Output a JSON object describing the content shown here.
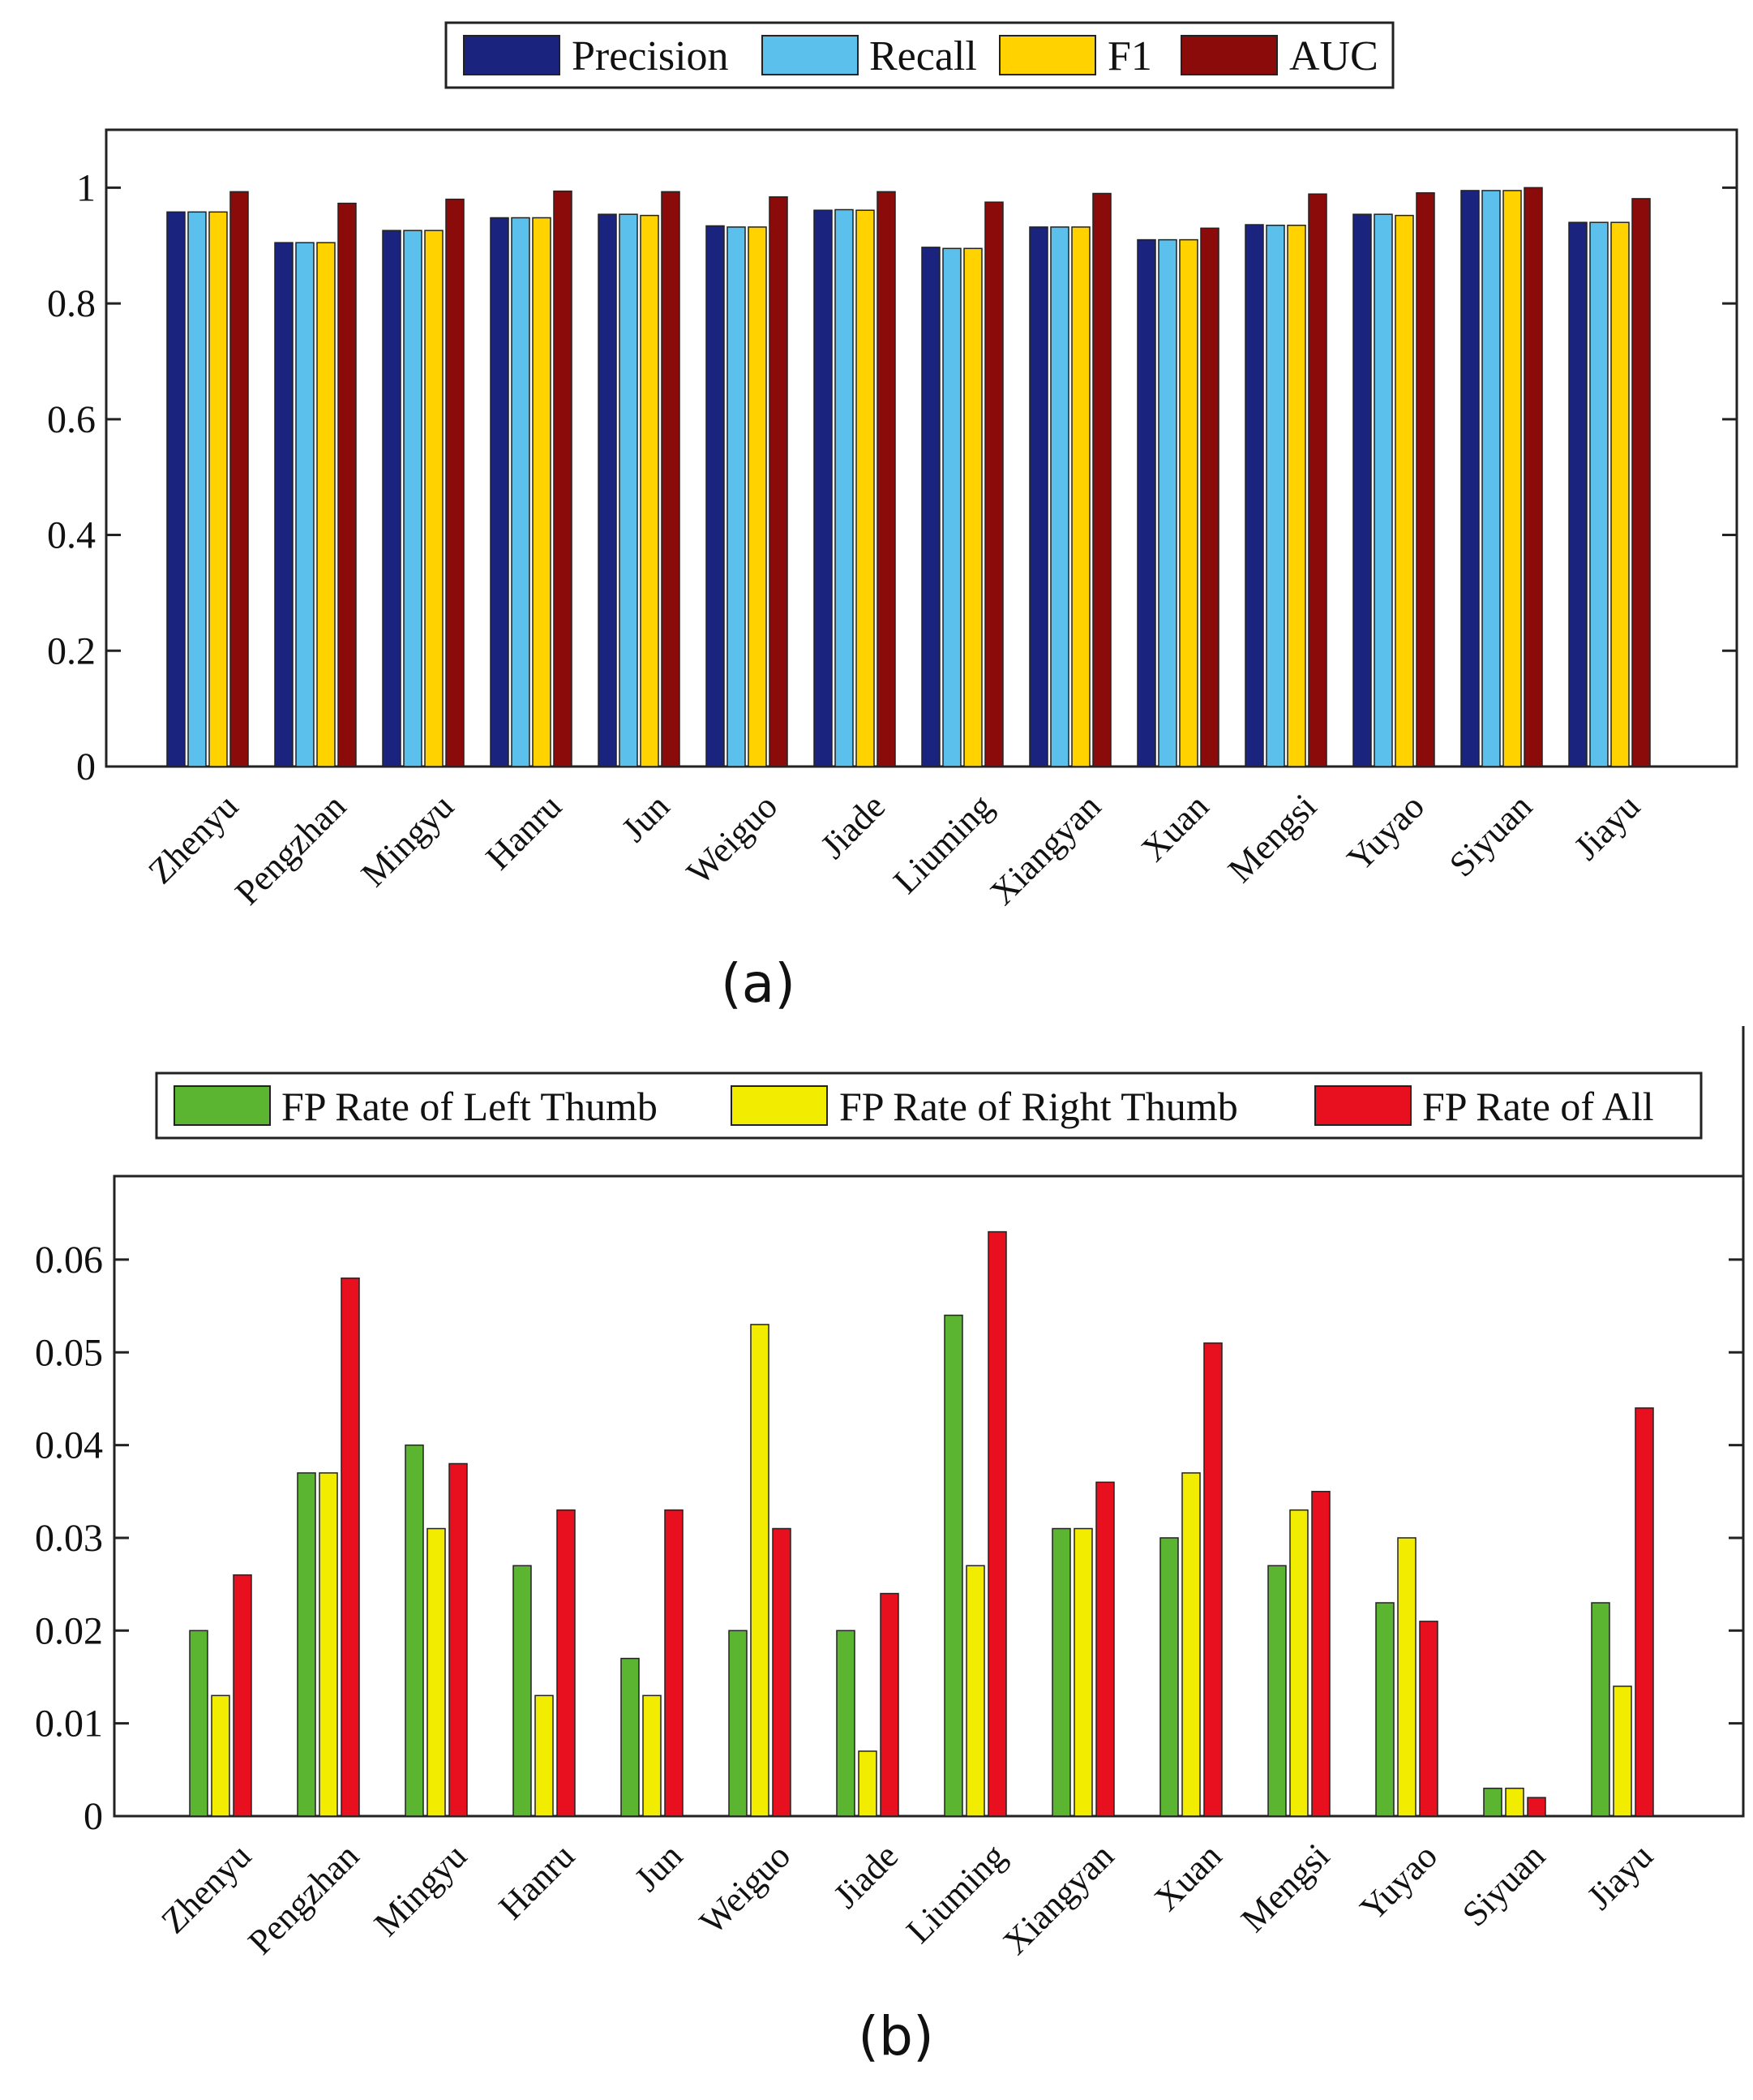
{
  "chart_data": [
    {
      "type": "bar",
      "panel_label": "(a)",
      "title": "",
      "xlabel": "",
      "ylabel": "",
      "ylim": [
        0,
        1.1
      ],
      "yticks": [
        0,
        0.2,
        0.4,
        0.6,
        0.8,
        1
      ],
      "ytick_labels": [
        "0",
        "0.2",
        "0.4",
        "0.6",
        "0.8",
        "1"
      ],
      "categories": [
        "Zhenyu",
        "Pengzhan",
        "Mingyu",
        "Hanru",
        "Jun",
        "Weiguo",
        "Jiade",
        "Liuming",
        "Xiangyan",
        "Xuan",
        "Mengsi",
        "Yuyao",
        "Siyuan",
        "Jiayu"
      ],
      "legend_position": "top-center",
      "series": [
        {
          "name": "Precision",
          "color": "#1a237e",
          "values": [
            0.958,
            0.905,
            0.926,
            0.948,
            0.954,
            0.934,
            0.961,
            0.897,
            0.932,
            0.91,
            0.936,
            0.954,
            0.995,
            0.94
          ]
        },
        {
          "name": "Recall",
          "color": "#5bc0eb",
          "values": [
            0.958,
            0.905,
            0.926,
            0.948,
            0.954,
            0.932,
            0.962,
            0.895,
            0.932,
            0.91,
            0.935,
            0.954,
            0.995,
            0.94
          ]
        },
        {
          "name": "F1",
          "color": "#ffd200",
          "values": [
            0.958,
            0.905,
            0.926,
            0.948,
            0.952,
            0.932,
            0.961,
            0.895,
            0.932,
            0.91,
            0.935,
            0.952,
            0.995,
            0.94
          ]
        },
        {
          "name": "AUC",
          "color": "#8b0b0b",
          "values": [
            0.993,
            0.973,
            0.98,
            0.994,
            0.993,
            0.984,
            0.993,
            0.975,
            0.99,
            0.93,
            0.989,
            0.991,
            1.0,
            0.981
          ]
        }
      ]
    },
    {
      "type": "bar",
      "panel_label": "(b)",
      "title": "",
      "xlabel": "",
      "ylabel": "",
      "ylim": [
        0,
        0.069
      ],
      "yticks": [
        0,
        0.01,
        0.02,
        0.03,
        0.04,
        0.05,
        0.06
      ],
      "ytick_labels": [
        "0",
        "0.01",
        "0.02",
        "0.03",
        "0.04",
        "0.05",
        "0.06"
      ],
      "categories": [
        "Zhenyu",
        "Pengzhan",
        "Mingyu",
        "Hanru",
        "Jun",
        "Weiguo",
        "Jiade",
        "Liuming",
        "Xiangyan",
        "Xuan",
        "Mengsi",
        "Yuyao",
        "Siyuan",
        "Jiayu"
      ],
      "legend_position": "top-center",
      "series": [
        {
          "name": "FP Rate of Left Thumb",
          "color": "#5cb531",
          "values": [
            0.02,
            0.037,
            0.04,
            0.027,
            0.017,
            0.02,
            0.02,
            0.054,
            0.031,
            0.03,
            0.027,
            0.023,
            0.003,
            0.023
          ]
        },
        {
          "name": "FP Rate of Right Thumb",
          "color": "#f2ec00",
          "values": [
            0.013,
            0.037,
            0.031,
            0.013,
            0.013,
            0.053,
            0.007,
            0.027,
            0.031,
            0.037,
            0.033,
            0.03,
            0.003,
            0.014
          ]
        },
        {
          "name": "FP Rate of All",
          "color": "#e8101e",
          "values": [
            0.026,
            0.058,
            0.038,
            0.033,
            0.033,
            0.031,
            0.024,
            0.063,
            0.036,
            0.051,
            0.035,
            0.021,
            0.002,
            0.044
          ]
        }
      ]
    }
  ]
}
